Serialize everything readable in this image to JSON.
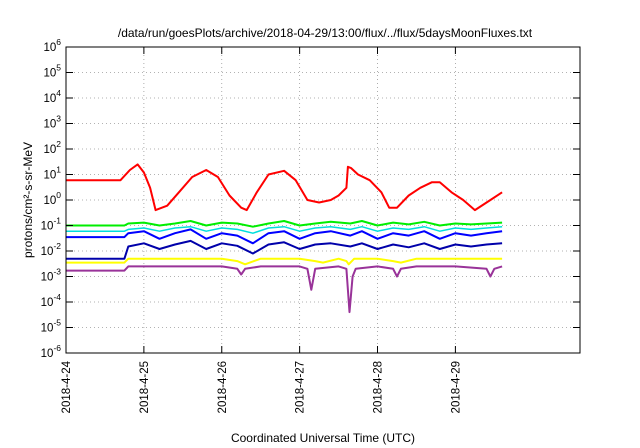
{
  "chart_data": {
    "type": "line",
    "title": "/data/run/goesPlots/archive/2018-04-29/13:00/flux/../flux/5daysMoonFluxes.txt",
    "xlabel": "Coordinated Universal Time (UTC)",
    "ylabel": "protons/cm²-s-sr-MeV",
    "yscale": "log",
    "ylim": [
      1e-06,
      1000000.0
    ],
    "xlim_days": [
      0,
      6.6
    ],
    "x_ticks": [
      {
        "label": "2018-4-24",
        "day": 0
      },
      {
        "label": "2018-4-25",
        "day": 1
      },
      {
        "label": "2018-4-26",
        "day": 2
      },
      {
        "label": "2018-4-27",
        "day": 3
      },
      {
        "label": "2018-4-28",
        "day": 4
      },
      {
        "label": "2018-4-29",
        "day": 5
      }
    ],
    "y_ticks": [
      {
        "base": "10",
        "exp": "-6",
        "value": 1e-06
      },
      {
        "base": "10",
        "exp": "-5",
        "value": 1e-05
      },
      {
        "base": "10",
        "exp": "-4",
        "value": 0.0001
      },
      {
        "base": "10",
        "exp": "-3",
        "value": 0.001
      },
      {
        "base": "10",
        "exp": "-2",
        "value": 0.01
      },
      {
        "base": "10",
        "exp": "-1",
        "value": 0.1
      },
      {
        "base": "10",
        "exp": "0",
        "value": 1
      },
      {
        "base": "10",
        "exp": "1",
        "value": 10
      },
      {
        "base": "10",
        "exp": "2",
        "value": 100
      },
      {
        "base": "10",
        "exp": "3",
        "value": 1000
      },
      {
        "base": "10",
        "exp": "4",
        "value": 10000
      },
      {
        "base": "10",
        "exp": "5",
        "value": 100000
      },
      {
        "base": "10",
        "exp": "6",
        "value": 1000000
      }
    ],
    "grid": true,
    "legend": "none",
    "series": [
      {
        "color": "#ff0000",
        "width": 2,
        "x": [
          0,
          0.7,
          0.82,
          0.92,
          1.0,
          1.08,
          1.15,
          1.3,
          1.45,
          1.62,
          1.8,
          1.95,
          2.1,
          2.25,
          2.32,
          2.45,
          2.6,
          2.8,
          2.95,
          3.1,
          3.25,
          3.4,
          3.5,
          3.6,
          3.62,
          3.66,
          3.75,
          3.9,
          4.05,
          4.15,
          4.25,
          4.4,
          4.55,
          4.7,
          4.8,
          4.95,
          5.1,
          5.25,
          5.45,
          5.6
        ],
        "y": [
          6,
          6,
          15,
          25,
          12,
          3,
          0.4,
          0.6,
          2,
          8,
          15,
          8,
          1.5,
          0.5,
          0.4,
          2,
          10,
          14,
          6,
          1.0,
          0.8,
          1.0,
          1.5,
          3,
          20,
          18,
          10,
          6,
          2,
          0.5,
          0.5,
          1.5,
          3,
          5,
          5,
          2,
          1,
          0.4,
          1,
          2
        ]
      },
      {
        "color": "#00ee00",
        "width": 2,
        "x": [
          0,
          0.75,
          0.8,
          1.0,
          1.2,
          1.4,
          1.6,
          1.8,
          2.0,
          2.2,
          2.4,
          2.6,
          2.8,
          3.0,
          3.2,
          3.4,
          3.65,
          3.8,
          4.0,
          4.2,
          4.4,
          4.6,
          4.8,
          5.0,
          5.2,
          5.4,
          5.6
        ],
        "y": [
          0.1,
          0.1,
          0.12,
          0.13,
          0.1,
          0.12,
          0.15,
          0.1,
          0.13,
          0.12,
          0.09,
          0.12,
          0.15,
          0.1,
          0.12,
          0.14,
          0.12,
          0.15,
          0.1,
          0.13,
          0.11,
          0.14,
          0.1,
          0.12,
          0.11,
          0.12,
          0.13
        ]
      },
      {
        "color": "#00dddd",
        "width": 1.5,
        "x": [
          0,
          0.75,
          0.8,
          1.0,
          1.2,
          1.4,
          1.6,
          1.8,
          2.0,
          2.2,
          2.4,
          2.6,
          2.8,
          3.0,
          3.2,
          3.4,
          3.65,
          3.8,
          4.0,
          4.2,
          4.4,
          4.6,
          4.8,
          5.0,
          5.2,
          5.4,
          5.6
        ],
        "y": [
          0.06,
          0.06,
          0.07,
          0.08,
          0.06,
          0.08,
          0.09,
          0.06,
          0.08,
          0.07,
          0.05,
          0.08,
          0.09,
          0.06,
          0.08,
          0.09,
          0.07,
          0.09,
          0.06,
          0.08,
          0.07,
          0.09,
          0.06,
          0.08,
          0.07,
          0.08,
          0.09
        ]
      },
      {
        "color": "#0000ff",
        "width": 2,
        "x": [
          0,
          0.75,
          0.8,
          1.0,
          1.2,
          1.4,
          1.6,
          1.8,
          2.0,
          2.2,
          2.4,
          2.6,
          2.8,
          3.0,
          3.2,
          3.4,
          3.65,
          3.8,
          4.0,
          4.2,
          4.4,
          4.6,
          4.8,
          5.0,
          5.2,
          5.4,
          5.6
        ],
        "y": [
          0.035,
          0.035,
          0.05,
          0.06,
          0.03,
          0.05,
          0.07,
          0.03,
          0.05,
          0.04,
          0.02,
          0.05,
          0.06,
          0.03,
          0.05,
          0.06,
          0.04,
          0.06,
          0.03,
          0.05,
          0.04,
          0.06,
          0.03,
          0.05,
          0.04,
          0.05,
          0.06
        ]
      },
      {
        "color": "#0000aa",
        "width": 2,
        "x": [
          0,
          0.75,
          0.8,
          1.0,
          1.2,
          1.4,
          1.6,
          1.8,
          2.0,
          2.2,
          2.4,
          2.6,
          2.8,
          3.0,
          3.2,
          3.4,
          3.65,
          3.8,
          4.0,
          4.2,
          4.4,
          4.6,
          4.8,
          5.0,
          5.2,
          5.4,
          5.6
        ],
        "y": [
          0.005,
          0.005,
          0.015,
          0.02,
          0.012,
          0.018,
          0.025,
          0.012,
          0.02,
          0.016,
          0.008,
          0.018,
          0.022,
          0.012,
          0.018,
          0.02,
          0.015,
          0.02,
          0.012,
          0.018,
          0.014,
          0.02,
          0.012,
          0.018,
          0.015,
          0.018,
          0.02
        ]
      },
      {
        "color": "#ffff00",
        "width": 2,
        "x": [
          0,
          0.75,
          0.8,
          1.0,
          1.5,
          2.0,
          2.2,
          2.3,
          2.5,
          3.0,
          3.2,
          3.3,
          3.5,
          3.6,
          3.63,
          3.7,
          4.0,
          4.2,
          4.3,
          4.5,
          5.0,
          5.5,
          5.6
        ],
        "y": [
          0.0035,
          0.0035,
          0.005,
          0.005,
          0.005,
          0.005,
          0.004,
          0.003,
          0.005,
          0.005,
          0.004,
          0.0035,
          0.005,
          0.004,
          0.003,
          0.005,
          0.005,
          0.004,
          0.0035,
          0.005,
          0.005,
          0.005,
          0.005
        ]
      },
      {
        "color": "#993399",
        "width": 2,
        "x": [
          0,
          0.75,
          0.8,
          1.0,
          1.5,
          2.0,
          2.2,
          2.25,
          2.3,
          2.5,
          3.0,
          3.1,
          3.15,
          3.2,
          3.5,
          3.6,
          3.64,
          3.68,
          3.72,
          4.0,
          4.2,
          4.25,
          4.3,
          4.5,
          5.0,
          5.4,
          5.45,
          5.5,
          5.6
        ],
        "y": [
          0.0017,
          0.0017,
          0.0025,
          0.0025,
          0.0025,
          0.0025,
          0.002,
          0.0012,
          0.002,
          0.0025,
          0.0025,
          0.002,
          0.0003,
          0.002,
          0.0025,
          0.002,
          4e-05,
          0.001,
          0.002,
          0.0025,
          0.002,
          0.001,
          0.002,
          0.0025,
          0.0025,
          0.002,
          0.001,
          0.002,
          0.0025
        ]
      }
    ]
  }
}
